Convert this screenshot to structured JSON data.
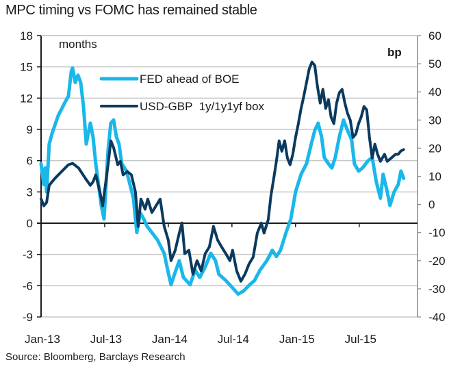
{
  "chart_data": {
    "type": "line",
    "title": "MPC timing vs FOMC has remained stable",
    "source": "Source: Bloomberg, Barclays Research",
    "xlabel": "",
    "x_tick_labels": [
      "Jan-13",
      "Jul-13",
      "Jan-14",
      "Jul-14",
      "Jan-15",
      "Jul-15"
    ],
    "x_tick_months": [
      0,
      6,
      12,
      18,
      24,
      30
    ],
    "x_range_months": [
      0,
      35.5
    ],
    "x_unit": "months since Jan-2013",
    "y_left": {
      "label": "months",
      "range": [
        -9,
        18
      ],
      "ticks": [
        -9,
        -6,
        -3,
        0,
        3,
        6,
        9,
        12,
        15,
        18
      ]
    },
    "y_right": {
      "label": "bp",
      "range": [
        -40,
        60
      ],
      "ticks": [
        -40,
        -30,
        -20,
        -10,
        0,
        10,
        20,
        30,
        40,
        50,
        60
      ]
    },
    "grid": true,
    "legend": {
      "placement": "top-center"
    },
    "series": [
      {
        "name": "FED ahead of BOE",
        "axis": "left",
        "color": "#1ab7ea",
        "x": [
          0,
          0.26,
          0.39,
          0.52,
          0.77,
          1.03,
          1.61,
          2.26,
          2.58,
          2.84,
          2.97,
          3.23,
          3.48,
          3.74,
          4.0,
          4.26,
          4.39,
          4.65,
          4.9,
          5.16,
          5.68,
          5.94,
          6.32,
          6.58,
          6.84,
          7.1,
          7.35,
          7.61,
          8.06,
          8.71,
          9.03,
          9.35,
          9.68,
          10.0,
          10.45,
          10.97,
          11.61,
          11.94,
          12.26,
          12.58,
          13.03,
          13.42,
          14.06,
          14.52,
          14.97,
          15.48,
          16.0,
          16.45,
          16.77,
          17.42,
          18.06,
          18.58,
          19.1,
          19.68,
          20.13,
          20.65,
          21.29,
          21.81,
          22.19,
          22.58,
          23.1,
          23.55,
          24.0,
          24.52,
          25.03,
          25.48,
          25.81,
          26.13,
          26.45,
          26.71,
          27.1,
          27.42,
          27.74,
          28.13,
          28.52,
          28.9,
          29.29,
          29.55,
          29.94,
          30.32,
          30.84,
          31.23,
          31.61,
          32.0,
          32.26,
          32.65,
          32.9,
          33.29,
          33.68,
          33.94,
          34.19
        ],
        "values": [
          5.7,
          3.7,
          5.3,
          3.0,
          7.6,
          8.6,
          10.3,
          11.6,
          12.2,
          14.5,
          14.9,
          13.5,
          14.2,
          13.5,
          11.2,
          7.6,
          8.3,
          9.6,
          8.3,
          5.7,
          1.7,
          0.4,
          7.0,
          9.6,
          9.9,
          8.3,
          7.6,
          5.7,
          5.0,
          2.4,
          -0.9,
          1.0,
          0.4,
          -0.3,
          -0.9,
          -1.6,
          -2.9,
          -4.5,
          -5.9,
          -4.9,
          -3.6,
          -5.2,
          -5.9,
          -4.5,
          -5.2,
          -4.2,
          -2.9,
          -3.6,
          -4.9,
          -5.5,
          -6.2,
          -6.8,
          -6.5,
          -5.9,
          -5.5,
          -4.5,
          -3.6,
          -2.6,
          -3.2,
          -2.6,
          -0.9,
          0.4,
          3.0,
          4.7,
          5.7,
          7.6,
          8.9,
          9.6,
          8.3,
          6.3,
          5.7,
          5.3,
          6.3,
          8.3,
          9.9,
          8.9,
          8.0,
          5.7,
          5.0,
          5.3,
          6.0,
          6.3,
          4.0,
          2.4,
          4.7,
          3.0,
          1.7,
          3.0,
          3.7,
          5.0,
          4.3
        ]
      },
      {
        "name": "USD-GBP  1y/1y1yf box",
        "axis": "right",
        "color": "#0b3a5e",
        "x": [
          0,
          0.26,
          0.52,
          0.77,
          1.29,
          1.94,
          2.58,
          2.97,
          3.55,
          4.19,
          4.65,
          4.9,
          5.16,
          5.55,
          5.81,
          6.06,
          6.32,
          6.58,
          6.84,
          7.23,
          7.48,
          7.74,
          8.13,
          8.52,
          8.9,
          9.16,
          9.42,
          9.81,
          10.06,
          10.45,
          10.84,
          11.23,
          11.61,
          12.0,
          12.26,
          12.65,
          13.03,
          13.29,
          13.55,
          13.94,
          14.32,
          14.71,
          15.1,
          15.48,
          15.87,
          16.26,
          16.65,
          17.03,
          17.42,
          17.81,
          18.06,
          18.45,
          18.84,
          19.23,
          19.61,
          20.0,
          20.39,
          20.77,
          21.03,
          21.42,
          21.68,
          21.94,
          22.19,
          22.45,
          22.71,
          22.97,
          23.23,
          23.48,
          23.74,
          24.0,
          24.26,
          24.52,
          24.77,
          25.03,
          25.29,
          25.55,
          25.81,
          26.06,
          26.32,
          26.58,
          26.84,
          27.1,
          27.35,
          27.61,
          27.87,
          28.13,
          28.39,
          28.65,
          28.9,
          29.16,
          29.42,
          29.68,
          29.94,
          30.19,
          30.45,
          30.71,
          30.97,
          31.23,
          31.48,
          31.74,
          32.0,
          32.39,
          32.65,
          33.03,
          33.42,
          33.68,
          33.94,
          34.19
        ],
        "values": [
          2.0,
          -0.5,
          0.7,
          6.8,
          9.2,
          11.7,
          14.1,
          14.6,
          12.9,
          9.2,
          6.8,
          8.0,
          10.5,
          4.4,
          -0.5,
          6.8,
          14.1,
          22.6,
          20.2,
          14.1,
          15.3,
          10.5,
          11.7,
          10.5,
          4.4,
          -7.8,
          1.9,
          -1.7,
          1.9,
          -2.9,
          -0.5,
          1.9,
          -7.8,
          -12.7,
          -20.0,
          -16.3,
          -10.2,
          -6.6,
          -17.5,
          -16.3,
          -24.8,
          -20.0,
          -23.6,
          -17.5,
          -15.1,
          -7.8,
          -12.7,
          -15.1,
          -17.5,
          -20.0,
          -16.3,
          -23.6,
          -27.3,
          -24.8,
          -21.2,
          -18.7,
          -10.2,
          -6.6,
          -10.2,
          -5.4,
          3.2,
          9.2,
          15.3,
          22.6,
          18.9,
          22.6,
          16.5,
          14.1,
          17.8,
          23.8,
          28.7,
          34.1,
          38.4,
          43.3,
          48.2,
          50.6,
          49.4,
          42.1,
          36.0,
          40.9,
          34.1,
          37.2,
          31.1,
          28.7,
          36.0,
          39.7,
          40.9,
          36.0,
          32.4,
          29.9,
          23.8,
          25.0,
          28.7,
          31.1,
          34.8,
          33.6,
          23.8,
          16.5,
          21.4,
          17.8,
          15.3,
          17.8,
          15.3,
          16.5,
          17.8,
          17.8,
          19.0,
          19.5
        ]
      }
    ]
  }
}
